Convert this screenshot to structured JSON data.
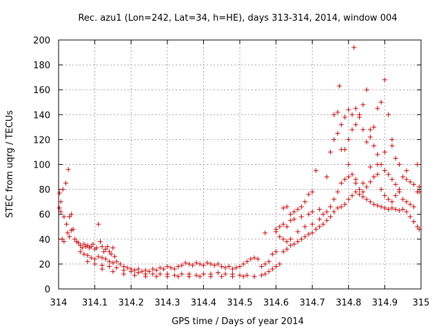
{
  "chart_data": {
    "type": "scatter",
    "title": "Rec. azu1 (Lon=242, Lat=34, h=HE), days 313-314, 2014, window 004",
    "xlabel": "GPS time / Days of year 2014",
    "ylabel": "STEC from uqrg / TECUs",
    "xlim": [
      314,
      315
    ],
    "ylim": [
      0,
      200
    ],
    "grid": true,
    "marker": "plus",
    "color": "#cc0000",
    "x_ticks": [
      {
        "value": 314,
        "label": "314"
      },
      {
        "value": 314.1,
        "label": "314.1"
      },
      {
        "value": 314.2,
        "label": "314.2"
      },
      {
        "value": 314.3,
        "label": "314.3"
      },
      {
        "value": 314.4,
        "label": "314.4"
      },
      {
        "value": 314.5,
        "label": "314.5"
      },
      {
        "value": 314.6,
        "label": "314.6"
      },
      {
        "value": 314.7,
        "label": "314.7"
      },
      {
        "value": 314.8,
        "label": "314.8"
      },
      {
        "value": 314.9,
        "label": "314.9"
      },
      {
        "value": 315,
        "label": "315"
      }
    ],
    "y_ticks": [
      {
        "value": 0,
        "label": "0"
      },
      {
        "value": 20,
        "label": "20"
      },
      {
        "value": 40,
        "label": "40"
      },
      {
        "value": 60,
        "label": "60"
      },
      {
        "value": 80,
        "label": "80"
      },
      {
        "value": 100,
        "label": "100"
      },
      {
        "value": 120,
        "label": "120"
      },
      {
        "value": 140,
        "label": "140"
      },
      {
        "value": 160,
        "label": "160"
      },
      {
        "value": 180,
        "label": "180"
      },
      {
        "value": 200,
        "label": "200"
      }
    ],
    "series": [
      {
        "points": [
          [
            314.003,
            77
          ],
          [
            314.006,
            70
          ],
          [
            314.012,
            80
          ],
          [
            314.02,
            85
          ],
          [
            314.027,
            96
          ],
          [
            314.015,
            58
          ],
          [
            314.022,
            52
          ],
          [
            314.03,
            58
          ],
          [
            314.035,
            60
          ],
          [
            314.002,
            65
          ],
          [
            314.006,
            62
          ],
          [
            314.01,
            40
          ],
          [
            314.015,
            38
          ],
          [
            314.025,
            45
          ],
          [
            314.03,
            42
          ],
          [
            314.035,
            47
          ],
          [
            314.04,
            48
          ],
          [
            314.045,
            40
          ],
          [
            314.05,
            38
          ],
          [
            314.055,
            37
          ],
          [
            314.06,
            35
          ],
          [
            314.065,
            33
          ],
          [
            314.07,
            36
          ],
          [
            314.075,
            34
          ],
          [
            314.08,
            35
          ],
          [
            314.085,
            33
          ],
          [
            314.09,
            34
          ],
          [
            314.095,
            36
          ],
          [
            314.1,
            32
          ],
          [
            314.105,
            33
          ],
          [
            314.11,
            52
          ],
          [
            314.115,
            38
          ],
          [
            314.12,
            34
          ],
          [
            314.125,
            30
          ],
          [
            314.13,
            32
          ],
          [
            314.135,
            34
          ],
          [
            314.14,
            30
          ],
          [
            314.145,
            28
          ],
          [
            314.15,
            33
          ],
          [
            314.155,
            26
          ],
          [
            314.06,
            30
          ],
          [
            314.07,
            28
          ],
          [
            314.08,
            27
          ],
          [
            314.09,
            25
          ],
          [
            314.1,
            24
          ],
          [
            314.11,
            26
          ],
          [
            314.12,
            25
          ],
          [
            314.13,
            24
          ],
          [
            314.14,
            22
          ],
          [
            314.15,
            21
          ],
          [
            314.16,
            22
          ],
          [
            314.17,
            20
          ],
          [
            314.18,
            18
          ],
          [
            314.19,
            17
          ],
          [
            314.2,
            16
          ],
          [
            314.21,
            15
          ],
          [
            314.22,
            16
          ],
          [
            314.23,
            14
          ],
          [
            314.24,
            15
          ],
          [
            314.25,
            14
          ],
          [
            314.26,
            16
          ],
          [
            314.27,
            15
          ],
          [
            314.28,
            17
          ],
          [
            314.29,
            16
          ],
          [
            314.3,
            18
          ],
          [
            314.31,
            17
          ],
          [
            314.32,
            16
          ],
          [
            314.33,
            18
          ],
          [
            314.34,
            19
          ],
          [
            314.35,
            21
          ],
          [
            314.36,
            20
          ],
          [
            314.37,
            19
          ],
          [
            314.38,
            21
          ],
          [
            314.39,
            20
          ],
          [
            314.4,
            19
          ],
          [
            314.41,
            21
          ],
          [
            314.42,
            20
          ],
          [
            314.43,
            19
          ],
          [
            314.44,
            20
          ],
          [
            314.45,
            18
          ],
          [
            314.46,
            17
          ],
          [
            314.47,
            18
          ],
          [
            314.48,
            16
          ],
          [
            314.49,
            17
          ],
          [
            314.5,
            18
          ],
          [
            314.51,
            20
          ],
          [
            314.52,
            22
          ],
          [
            314.53,
            24
          ],
          [
            314.54,
            25
          ],
          [
            314.55,
            24
          ],
          [
            314.08,
            22
          ],
          [
            314.1,
            20
          ],
          [
            314.12,
            19
          ],
          [
            314.14,
            18
          ],
          [
            314.16,
            17
          ],
          [
            314.18,
            15
          ],
          [
            314.2,
            14
          ],
          [
            314.22,
            13
          ],
          [
            314.24,
            12
          ],
          [
            314.26,
            12
          ],
          [
            314.28,
            12
          ],
          [
            314.3,
            12
          ],
          [
            314.32,
            11
          ],
          [
            314.34,
            12
          ],
          [
            314.36,
            12
          ],
          [
            314.38,
            11
          ],
          [
            314.4,
            12
          ],
          [
            314.42,
            12
          ],
          [
            314.44,
            13
          ],
          [
            314.46,
            12
          ],
          [
            314.48,
            12
          ],
          [
            314.5,
            11
          ],
          [
            314.52,
            11
          ],
          [
            314.54,
            10
          ],
          [
            314.56,
            11
          ],
          [
            314.12,
            16
          ],
          [
            314.15,
            14
          ],
          [
            314.18,
            12
          ],
          [
            314.21,
            11
          ],
          [
            314.24,
            10
          ],
          [
            314.27,
            10
          ],
          [
            314.3,
            10
          ],
          [
            314.33,
            10
          ],
          [
            314.36,
            10
          ],
          [
            314.39,
            10
          ],
          [
            314.42,
            10
          ],
          [
            314.45,
            10
          ],
          [
            314.48,
            10
          ],
          [
            314.51,
            10
          ],
          [
            314.54,
            10
          ],
          [
            314.57,
            12
          ],
          [
            314.58,
            14
          ],
          [
            314.59,
            16
          ],
          [
            314.6,
            18
          ],
          [
            314.61,
            20
          ],
          [
            314.56,
            18
          ],
          [
            314.57,
            20
          ],
          [
            314.58,
            22
          ],
          [
            314.59,
            28
          ],
          [
            314.6,
            30
          ],
          [
            314.57,
            45
          ],
          [
            314.6,
            46
          ],
          [
            314.61,
            42
          ],
          [
            314.62,
            40
          ],
          [
            314.63,
            38
          ],
          [
            314.6,
            48
          ],
          [
            314.61,
            50
          ],
          [
            314.62,
            52
          ],
          [
            314.63,
            50
          ],
          [
            314.64,
            55
          ],
          [
            314.62,
            65
          ],
          [
            314.63,
            66
          ],
          [
            314.64,
            60
          ],
          [
            314.65,
            62
          ],
          [
            314.66,
            64
          ],
          [
            314.67,
            66
          ],
          [
            314.68,
            70
          ],
          [
            314.69,
            76
          ],
          [
            314.7,
            78
          ],
          [
            314.71,
            95
          ],
          [
            314.62,
            30
          ],
          [
            314.63,
            32
          ],
          [
            314.64,
            35
          ],
          [
            314.65,
            36
          ],
          [
            314.66,
            38
          ],
          [
            314.67,
            40
          ],
          [
            314.68,
            42
          ],
          [
            314.69,
            44
          ],
          [
            314.7,
            45
          ],
          [
            314.71,
            48
          ],
          [
            314.72,
            50
          ],
          [
            314.73,
            52
          ],
          [
            314.74,
            55
          ],
          [
            314.75,
            58
          ],
          [
            314.76,
            62
          ],
          [
            314.77,
            65
          ],
          [
            314.78,
            66
          ],
          [
            314.79,
            68
          ],
          [
            314.8,
            72
          ],
          [
            314.81,
            75
          ],
          [
            314.82,
            78
          ],
          [
            314.83,
            76
          ],
          [
            314.84,
            74
          ],
          [
            314.85,
            72
          ],
          [
            314.86,
            70
          ],
          [
            314.87,
            68
          ],
          [
            314.88,
            67
          ],
          [
            314.89,
            66
          ],
          [
            314.9,
            65
          ],
          [
            314.91,
            64
          ],
          [
            314.92,
            65
          ],
          [
            314.93,
            64
          ],
          [
            314.94,
            63
          ],
          [
            314.95,
            64
          ],
          [
            314.96,
            62
          ],
          [
            314.97,
            58
          ],
          [
            314.98,
            54
          ],
          [
            314.99,
            50
          ],
          [
            314.995,
            48
          ],
          [
            314.64,
            40
          ],
          [
            314.66,
            46
          ],
          [
            314.68,
            50
          ],
          [
            314.7,
            52
          ],
          [
            314.72,
            56
          ],
          [
            314.73,
            60
          ],
          [
            314.74,
            62
          ],
          [
            314.75,
            66
          ],
          [
            314.76,
            72
          ],
          [
            314.77,
            78
          ],
          [
            314.78,
            85
          ],
          [
            314.79,
            88
          ],
          [
            314.8,
            90
          ],
          [
            314.81,
            92
          ],
          [
            314.82,
            85
          ],
          [
            314.83,
            80
          ],
          [
            314.84,
            78
          ],
          [
            314.85,
            82
          ],
          [
            314.86,
            86
          ],
          [
            314.87,
            90
          ],
          [
            314.88,
            92
          ],
          [
            314.89,
            80
          ],
          [
            314.9,
            75
          ],
          [
            314.91,
            72
          ],
          [
            314.92,
            70
          ],
          [
            314.93,
            75
          ],
          [
            314.94,
            78
          ],
          [
            314.95,
            72
          ],
          [
            314.96,
            70
          ],
          [
            314.97,
            68
          ],
          [
            314.98,
            66
          ],
          [
            314.99,
            78
          ],
          [
            314.995,
            82
          ],
          [
            314.65,
            56
          ],
          [
            314.67,
            58
          ],
          [
            314.69,
            60
          ],
          [
            314.7,
            62
          ],
          [
            314.72,
            64
          ],
          [
            314.74,
            90
          ],
          [
            314.75,
            110
          ],
          [
            314.76,
            120
          ],
          [
            314.77,
            125
          ],
          [
            314.78,
            132
          ],
          [
            314.79,
            112
          ],
          [
            314.8,
            120
          ],
          [
            314.81,
            128
          ],
          [
            314.82,
            132
          ],
          [
            314.83,
            138
          ],
          [
            314.84,
            128
          ],
          [
            314.85,
            118
          ],
          [
            314.86,
            122
          ],
          [
            314.87,
            115
          ],
          [
            314.88,
            108
          ],
          [
            314.89,
            100
          ],
          [
            314.9,
            95
          ],
          [
            314.91,
            92
          ],
          [
            314.92,
            88
          ],
          [
            314.93,
            84
          ],
          [
            314.94,
            80
          ],
          [
            314.95,
            90
          ],
          [
            314.96,
            88
          ],
          [
            314.97,
            86
          ],
          [
            314.98,
            84
          ],
          [
            314.99,
            100
          ],
          [
            314.995,
            78
          ],
          [
            314.76,
            140
          ],
          [
            314.77,
            142
          ],
          [
            314.775,
            163
          ],
          [
            314.79,
            138
          ],
          [
            314.8,
            144
          ],
          [
            314.81,
            140
          ],
          [
            314.82,
            145
          ],
          [
            314.83,
            140
          ],
          [
            314.84,
            148
          ],
          [
            314.85,
            160
          ],
          [
            314.86,
            128
          ],
          [
            314.87,
            130
          ],
          [
            314.88,
            145
          ],
          [
            314.89,
            150
          ],
          [
            314.9,
            168
          ],
          [
            314.91,
            140
          ],
          [
            314.92,
            120
          ],
          [
            314.93,
            105
          ],
          [
            314.815,
            194
          ],
          [
            314.78,
            112
          ],
          [
            314.8,
            100
          ],
          [
            314.82,
            88
          ],
          [
            314.84,
            85
          ],
          [
            314.86,
            98
          ],
          [
            314.88,
            100
          ],
          [
            314.9,
            110
          ],
          [
            314.92,
            115
          ],
          [
            314.94,
            100
          ],
          [
            314.96,
            95
          ]
        ]
      }
    ]
  }
}
